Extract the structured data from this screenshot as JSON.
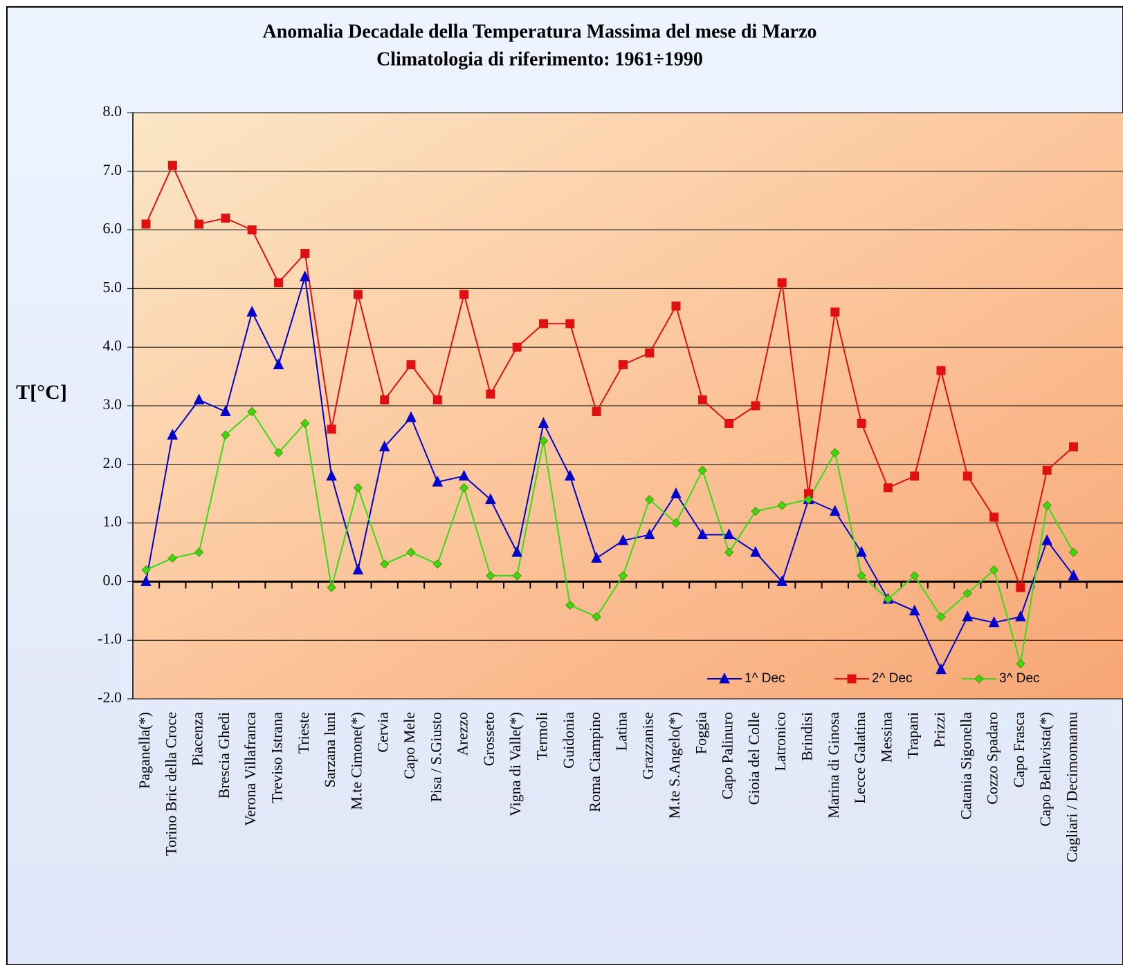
{
  "chart_data": {
    "type": "line",
    "title": "Anomalia Decadale della Temperatura Massima del mese di Marzo",
    "subtitle": "Climatologia di riferimento: 1961÷1990",
    "y_label": "T[°C]",
    "categories": [
      "Paganella(*)",
      "Torino Bric della Croce",
      "Piacenza",
      "Brescia Ghedi",
      "Verona Villafranca",
      "Treviso Istrana",
      "Trieste",
      "Sarzana luni",
      "M.te Cimone(*)",
      "Cervia",
      "Capo Mele",
      "Pisa / S.Giusto",
      "Arezzo",
      "Grosseto",
      "Vigna di Valle(*)",
      "Termoli",
      "Guidonia",
      "Roma Ciampino",
      "Latina",
      "Grazzanise",
      "M.te S.Angelo(*)",
      "Foggia",
      "Capo Palinuro",
      "Gioia del Colle",
      "Latronico",
      "Brindisi",
      "Marina di Ginosa",
      "Lecce Galatina",
      "Messina",
      "Trapani",
      "Prizzi",
      "Catania Sigonella",
      "Cozzo Spadaro",
      "Capo Frasca",
      "Capo Bellavista(*)",
      "Cagliari / Decimomannu"
    ],
    "series": [
      {
        "name": "1^ Dec",
        "color": "#0000cc",
        "marker": "triangle",
        "values": [
          0,
          2.5,
          3.1,
          2.9,
          4.6,
          3.7,
          5.2,
          1.8,
          0.2,
          2.3,
          2.8,
          1.7,
          1.8,
          1.4,
          0.5,
          2.7,
          1.8,
          0.4,
          0.7,
          0.8,
          1.5,
          0.8,
          0.8,
          0.5,
          0.0,
          1.4,
          1.2,
          0.5,
          -0.3,
          -0.5,
          -1.5,
          -0.6,
          -0.7,
          -0.6,
          0.7,
          0.1
        ]
      },
      {
        "name": "2^ Dec",
        "color": "#e01010",
        "marker": "square",
        "values": [
          6.1,
          7.1,
          6.1,
          6.2,
          6.0,
          5.1,
          5.6,
          2.6,
          4.9,
          3.1,
          3.7,
          3.1,
          4.9,
          3.2,
          4.0,
          4.4,
          4.4,
          2.9,
          3.7,
          3.9,
          4.7,
          3.1,
          2.7,
          3.0,
          5.1,
          1.5,
          4.6,
          2.7,
          1.6,
          1.8,
          3.6,
          1.8,
          1.1,
          -0.1,
          1.9,
          2.3
        ]
      },
      {
        "name": "3^ Dec",
        "color": "#33dd11",
        "marker": "diamond",
        "values": [
          0.2,
          0.4,
          0.5,
          2.5,
          2.9,
          2.2,
          2.7,
          -0.1,
          1.6,
          0.3,
          0.5,
          0.3,
          1.6,
          0.1,
          0.1,
          2.4,
          -0.4,
          -0.6,
          0.1,
          1.4,
          1.0,
          1.9,
          0.5,
          1.2,
          1.3,
          1.4,
          2.2,
          0.1,
          -0.3,
          0.1,
          -0.6,
          -0.2,
          0.2,
          -1.4,
          1.3,
          0.5
        ]
      }
    ],
    "ylim": [
      -2,
      8
    ],
    "yticks": [
      {
        "value": -2,
        "label": "-2.0"
      },
      {
        "value": -1,
        "label": "-1.0"
      },
      {
        "value": 0,
        "label": "0.0"
      },
      {
        "value": 1,
        "label": "1.0"
      },
      {
        "value": 2,
        "label": "2.0"
      },
      {
        "value": 3,
        "label": "3.0"
      },
      {
        "value": 4,
        "label": "4.0"
      },
      {
        "value": 5,
        "label": "5.0"
      },
      {
        "value": 6,
        "label": "6.0"
      },
      {
        "value": 7,
        "label": "7.0"
      },
      {
        "value": 8,
        "label": "8.0"
      }
    ],
    "grid": true
  }
}
